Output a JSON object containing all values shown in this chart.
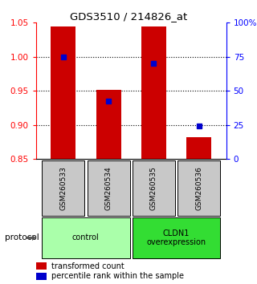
{
  "title": "GDS3510 / 214826_at",
  "samples": [
    "GSM260533",
    "GSM260534",
    "GSM260535",
    "GSM260536"
  ],
  "bar_bottom": 0.85,
  "bar_tops": [
    1.044,
    0.952,
    1.044,
    0.882
  ],
  "percentile_values": [
    1.0,
    0.935,
    0.99,
    0.898
  ],
  "ylim": [
    0.85,
    1.05
  ],
  "yticks_left": [
    0.85,
    0.9,
    0.95,
    1.0,
    1.05
  ],
  "yticks_right": [
    0,
    25,
    50,
    75,
    100
  ],
  "yticks_right_vals": [
    0.85,
    0.9,
    0.95,
    1.0,
    1.05
  ],
  "gridlines": [
    1.0,
    0.95,
    0.9
  ],
  "bar_color": "#cc0000",
  "blue_color": "#0000cc",
  "protocol_groups": [
    {
      "label": "control",
      "indices": [
        0,
        1
      ],
      "color": "#aaffaa"
    },
    {
      "label": "CLDN1\noverexpression",
      "indices": [
        2,
        3
      ],
      "color": "#33dd33"
    }
  ],
  "sample_box_color": "#c8c8c8",
  "legend_red_label": "transformed count",
  "legend_blue_label": "percentile rank within the sample",
  "protocol_label": "protocol",
  "bar_width": 0.55
}
